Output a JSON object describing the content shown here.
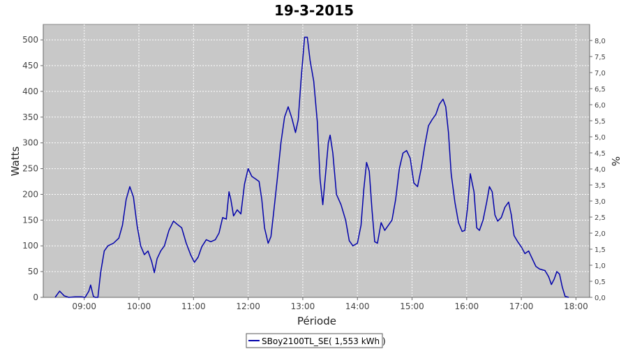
{
  "chart_data": {
    "type": "line",
    "title": "19-3-2015",
    "xlabel": "Période",
    "ylabel": "Watts",
    "y2label": "%",
    "xlim": [
      "08:15",
      "18:15"
    ],
    "ylim": [
      0,
      530
    ],
    "y2lim": [
      0,
      8.5
    ],
    "x_ticks": [
      "09:00",
      "10:00",
      "11:00",
      "12:00",
      "13:00",
      "14:00",
      "15:00",
      "16:00",
      "17:00",
      "18:00"
    ],
    "y_ticks": [
      0,
      50,
      100,
      150,
      200,
      250,
      300,
      350,
      400,
      450,
      500
    ],
    "y2_ticks": [
      "0,0",
      "0,5",
      "1,0",
      "1,5",
      "2,0",
      "2,5",
      "3,0",
      "3,5",
      "4,0",
      "4,5",
      "5,0",
      "5,5",
      "6,0",
      "6,5",
      "7,0",
      "7,5",
      "8,0"
    ],
    "grid": true,
    "legend_position": "bottom-center",
    "colors": {
      "line": "#0000aa",
      "plot_bg": "#c8c8c8",
      "grid": "#ffffff"
    },
    "series": [
      {
        "name": "SBoy2100TL_SE( 1,553 kWh )",
        "points": [
          [
            "08:28",
            0
          ],
          [
            "08:33",
            12
          ],
          [
            "08:38",
            3
          ],
          [
            "08:43",
            0
          ],
          [
            "08:50",
            1
          ],
          [
            "08:57",
            1
          ],
          [
            "09:01",
            0
          ],
          [
            "09:05",
            12
          ],
          [
            "09:07",
            24
          ],
          [
            "09:10",
            2
          ],
          [
            "09:12",
            0
          ],
          [
            "09:15",
            0
          ],
          [
            "09:18",
            48
          ],
          [
            "09:22",
            90
          ],
          [
            "09:26",
            100
          ],
          [
            "09:32",
            105
          ],
          [
            "09:38",
            115
          ],
          [
            "09:42",
            140
          ],
          [
            "09:46",
            190
          ],
          [
            "09:50",
            215
          ],
          [
            "09:54",
            195
          ],
          [
            "09:58",
            140
          ],
          [
            "10:02",
            100
          ],
          [
            "10:06",
            83
          ],
          [
            "10:10",
            90
          ],
          [
            "10:14",
            70
          ],
          [
            "10:17",
            48
          ],
          [
            "10:20",
            75
          ],
          [
            "10:24",
            90
          ],
          [
            "10:28",
            100
          ],
          [
            "10:33",
            130
          ],
          [
            "10:38",
            148
          ],
          [
            "10:42",
            142
          ],
          [
            "10:47",
            135
          ],
          [
            "10:52",
            105
          ],
          [
            "10:57",
            82
          ],
          [
            "11:01",
            68
          ],
          [
            "11:05",
            78
          ],
          [
            "11:09",
            98
          ],
          [
            "11:14",
            112
          ],
          [
            "11:19",
            108
          ],
          [
            "11:24",
            112
          ],
          [
            "11:28",
            125
          ],
          [
            "11:32",
            155
          ],
          [
            "11:36",
            152
          ],
          [
            "11:39",
            205
          ],
          [
            "11:41",
            190
          ],
          [
            "11:44",
            158
          ],
          [
            "11:48",
            170
          ],
          [
            "11:52",
            162
          ],
          [
            "11:56",
            220
          ],
          [
            "12:00",
            250
          ],
          [
            "12:04",
            235
          ],
          [
            "12:08",
            230
          ],
          [
            "12:12",
            225
          ],
          [
            "12:15",
            190
          ],
          [
            "12:18",
            135
          ],
          [
            "12:22",
            105
          ],
          [
            "12:25",
            118
          ],
          [
            "12:28",
            165
          ],
          [
            "12:32",
            230
          ],
          [
            "12:36",
            300
          ],
          [
            "12:40",
            350
          ],
          [
            "12:44",
            370
          ],
          [
            "12:48",
            348
          ],
          [
            "12:52",
            320
          ],
          [
            "12:55",
            345
          ],
          [
            "12:58",
            420
          ],
          [
            "13:02",
            505
          ],
          [
            "13:05",
            505
          ],
          [
            "13:08",
            460
          ],
          [
            "13:12",
            420
          ],
          [
            "13:16",
            340
          ],
          [
            "13:19",
            230
          ],
          [
            "13:22",
            180
          ],
          [
            "13:25",
            240
          ],
          [
            "13:28",
            300
          ],
          [
            "13:30",
            315
          ],
          [
            "13:33",
            280
          ],
          [
            "13:37",
            200
          ],
          [
            "13:42",
            180
          ],
          [
            "13:47",
            150
          ],
          [
            "13:51",
            110
          ],
          [
            "13:55",
            100
          ],
          [
            "14:00",
            105
          ],
          [
            "14:04",
            140
          ],
          [
            "14:07",
            210
          ],
          [
            "14:10",
            262
          ],
          [
            "14:13",
            245
          ],
          [
            "14:16",
            170
          ],
          [
            "14:19",
            108
          ],
          [
            "14:22",
            105
          ],
          [
            "14:26",
            145
          ],
          [
            "14:30",
            130
          ],
          [
            "14:34",
            140
          ],
          [
            "14:38",
            150
          ],
          [
            "14:42",
            190
          ],
          [
            "14:46",
            250
          ],
          [
            "14:50",
            280
          ],
          [
            "14:54",
            285
          ],
          [
            "14:58",
            270
          ],
          [
            "15:02",
            222
          ],
          [
            "15:06",
            215
          ],
          [
            "15:10",
            250
          ],
          [
            "15:14",
            295
          ],
          [
            "15:18",
            333
          ],
          [
            "15:22",
            345
          ],
          [
            "15:26",
            355
          ],
          [
            "15:30",
            375
          ],
          [
            "15:34",
            385
          ],
          [
            "15:37",
            370
          ],
          [
            "15:40",
            320
          ],
          [
            "15:43",
            240
          ],
          [
            "15:47",
            185
          ],
          [
            "15:51",
            145
          ],
          [
            "15:55",
            128
          ],
          [
            "15:58",
            130
          ],
          [
            "16:01",
            175
          ],
          [
            "16:04",
            240
          ],
          [
            "16:08",
            205
          ],
          [
            "16:11",
            135
          ],
          [
            "16:14",
            130
          ],
          [
            "16:18",
            150
          ],
          [
            "16:22",
            185
          ],
          [
            "16:25",
            215
          ],
          [
            "16:28",
            205
          ],
          [
            "16:31",
            160
          ],
          [
            "16:34",
            148
          ],
          [
            "16:38",
            155
          ],
          [
            "16:42",
            175
          ],
          [
            "16:46",
            185
          ],
          [
            "16:49",
            160
          ],
          [
            "16:52",
            120
          ],
          [
            "16:56",
            108
          ],
          [
            "17:00",
            98
          ],
          [
            "17:04",
            85
          ],
          [
            "17:08",
            90
          ],
          [
            "17:12",
            75
          ],
          [
            "17:16",
            60
          ],
          [
            "17:20",
            55
          ],
          [
            "17:26",
            52
          ],
          [
            "17:30",
            40
          ],
          [
            "17:33",
            25
          ],
          [
            "17:36",
            35
          ],
          [
            "17:39",
            50
          ],
          [
            "17:42",
            45
          ],
          [
            "17:45",
            20
          ],
          [
            "17:48",
            2
          ],
          [
            "17:52",
            0
          ]
        ]
      }
    ],
    "legend": {
      "entry": "SBoy2100TL_SE( 1,553 kWh )"
    }
  }
}
